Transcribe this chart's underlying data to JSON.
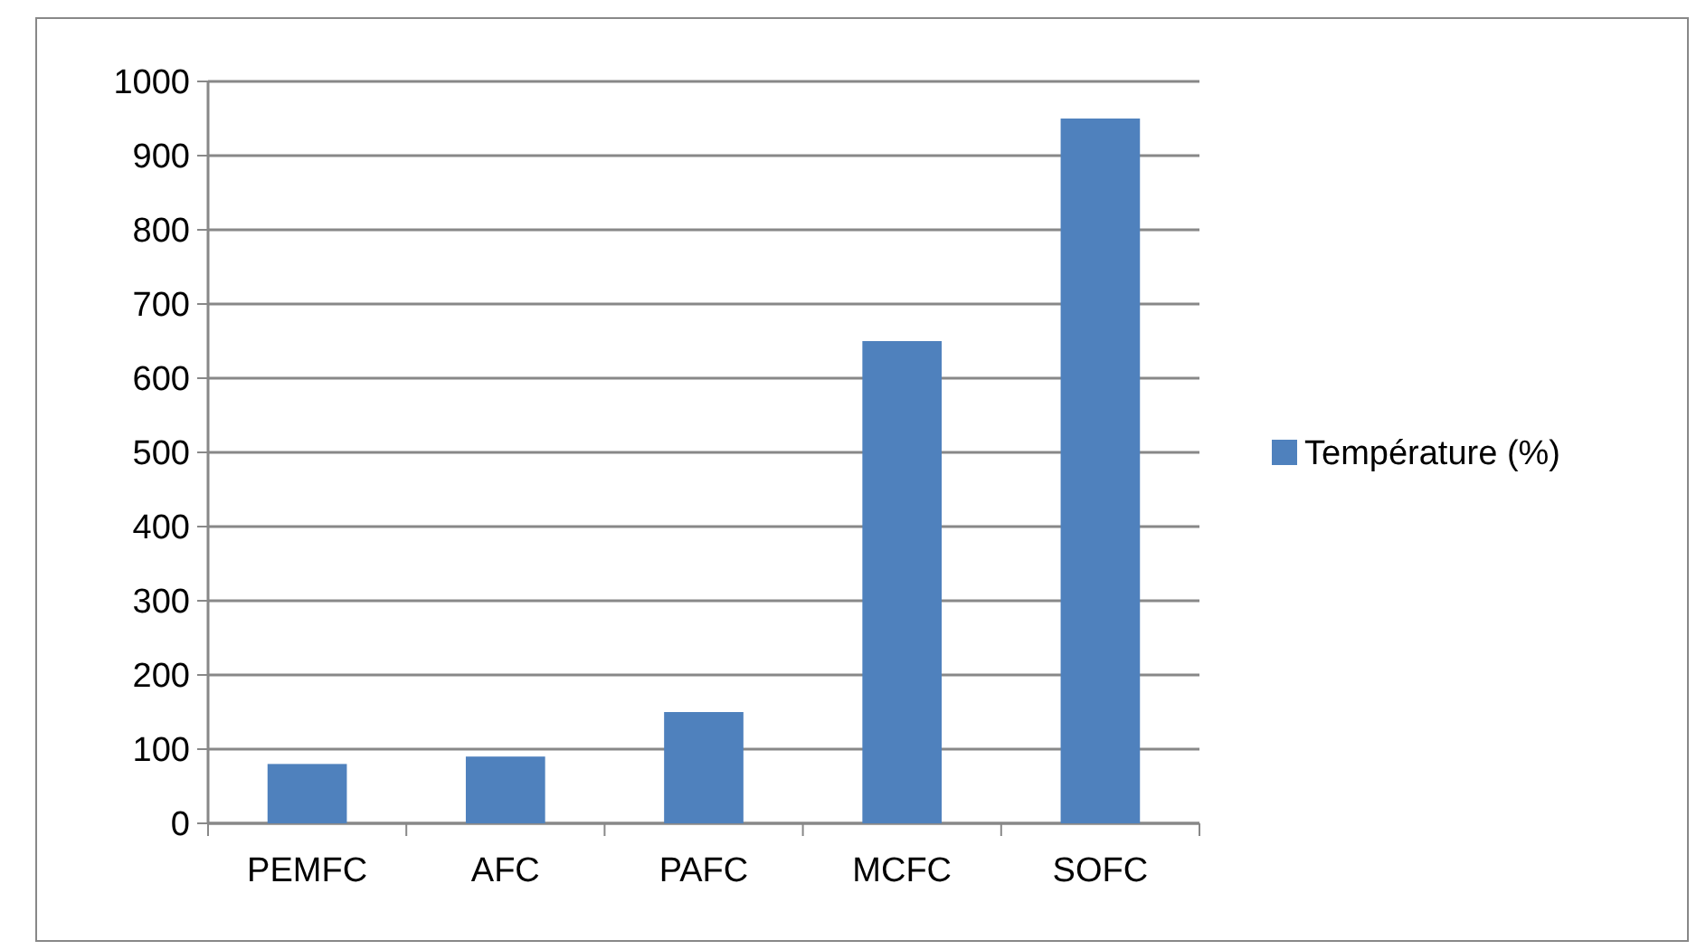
{
  "chart_data": {
    "type": "bar",
    "categories": [
      "PEMFC",
      "AFC",
      "PAFC",
      "MCFC",
      "SOFC"
    ],
    "series": [
      {
        "name": "Température (%)",
        "color": "#4f81bd",
        "values": [
          80,
          90,
          150,
          650,
          950
        ]
      }
    ],
    "ylim": [
      0,
      1000
    ],
    "yticks": [
      0,
      100,
      200,
      300,
      400,
      500,
      600,
      700,
      800,
      900,
      1000
    ],
    "grid": "y",
    "legend": "right"
  }
}
